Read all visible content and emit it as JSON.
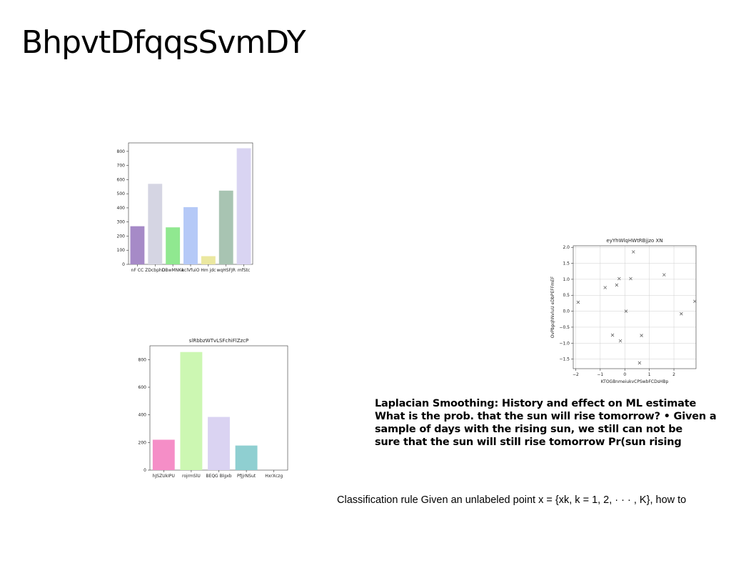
{
  "slide": {
    "title": "BhpvtDfqqsSvmDY"
  },
  "body": {
    "heading_lines": [
      "Laplacian Smoothing: History and effect on ML estimate",
      "What is the prob. that the sun will rise tomorrow? • Given a",
      "sample of days with the rising sun, we still can not be",
      "sure that the sun will still rise tomorrow Pr(sun rising"
    ],
    "classification": "Classification rule Given an unlabeled point x = {xk, k = 1, 2, · · · , K}, how to"
  },
  "chart_data": [
    {
      "type": "bar",
      "title": "",
      "categories": [
        "nF CC",
        "ZDcbphD",
        "DBwMNKe",
        "kclVfuiO",
        "Hm jdc",
        "wqHSFJR",
        "mfStc"
      ],
      "values": [
        270,
        570,
        262,
        405,
        58,
        522,
        822
      ],
      "colors": [
        "#a68ac7",
        "#d5d5e3",
        "#90e890",
        "#b5c9f7",
        "#ebe8a0",
        "#a8c4b2",
        "#d9d4f2"
      ],
      "ylim": [
        0,
        860
      ],
      "yticks": [
        0,
        100,
        200,
        300,
        400,
        500,
        600,
        700,
        800
      ]
    },
    {
      "type": "bar",
      "title": "slRbbzWTvLSFchiFlZzcP",
      "categories": [
        "hJSZUkIPU",
        "rojrmSlU",
        "BEQG Blgxb",
        "PfJjrNSut",
        "HxrXczg"
      ],
      "values": [
        220,
        855,
        385,
        178,
        0
      ],
      "colors": [
        "#f58ec7",
        "#ccf7b2",
        "#dad3f2",
        "#8fcfd1",
        "#cccccc"
      ],
      "ylim": [
        0,
        900
      ],
      "yticks": [
        0,
        200,
        400,
        600,
        800
      ]
    },
    {
      "type": "scatter",
      "title": "eyYhWlqHWtRBjjzo XN",
      "xlabel": "KTOGBnmeiukvCPSwbFCDsHBp",
      "ylabel": "OvPbpqhNvluU eDbPEFFmEF",
      "xlim": [
        -2.1,
        2.9
      ],
      "ylim": [
        -1.8,
        2.05
      ],
      "xticks": [
        -2,
        -1,
        0,
        1,
        2
      ],
      "xtick_labels": [
        "−2",
        "−1",
        "0",
        "1",
        "2"
      ],
      "yticks": [
        -1.5,
        -1.0,
        -0.5,
        0.0,
        0.5,
        1.0,
        1.5,
        2.0
      ],
      "ytick_labels": [
        "−1.5",
        "−1.0",
        "−0.5",
        "0.0",
        "0.5",
        "1.0",
        "1.5",
        "2.0"
      ],
      "grid": true,
      "marker": "x",
      "points": [
        {
          "x": -1.9,
          "y": 0.28
        },
        {
          "x": -0.8,
          "y": 0.74
        },
        {
          "x": -0.33,
          "y": 0.82
        },
        {
          "x": -0.23,
          "y": 1.02
        },
        {
          "x": 0.24,
          "y": 1.02
        },
        {
          "x": 0.35,
          "y": 1.86
        },
        {
          "x": 1.6,
          "y": 1.14
        },
        {
          "x": 2.85,
          "y": 0.31
        },
        {
          "x": 2.3,
          "y": -0.08
        },
        {
          "x": 0.05,
          "y": 0.0
        },
        {
          "x": -0.5,
          "y": -0.75
        },
        {
          "x": -0.18,
          "y": -0.93
        },
        {
          "x": 0.68,
          "y": -0.76
        },
        {
          "x": 0.6,
          "y": -1.62
        }
      ]
    }
  ]
}
